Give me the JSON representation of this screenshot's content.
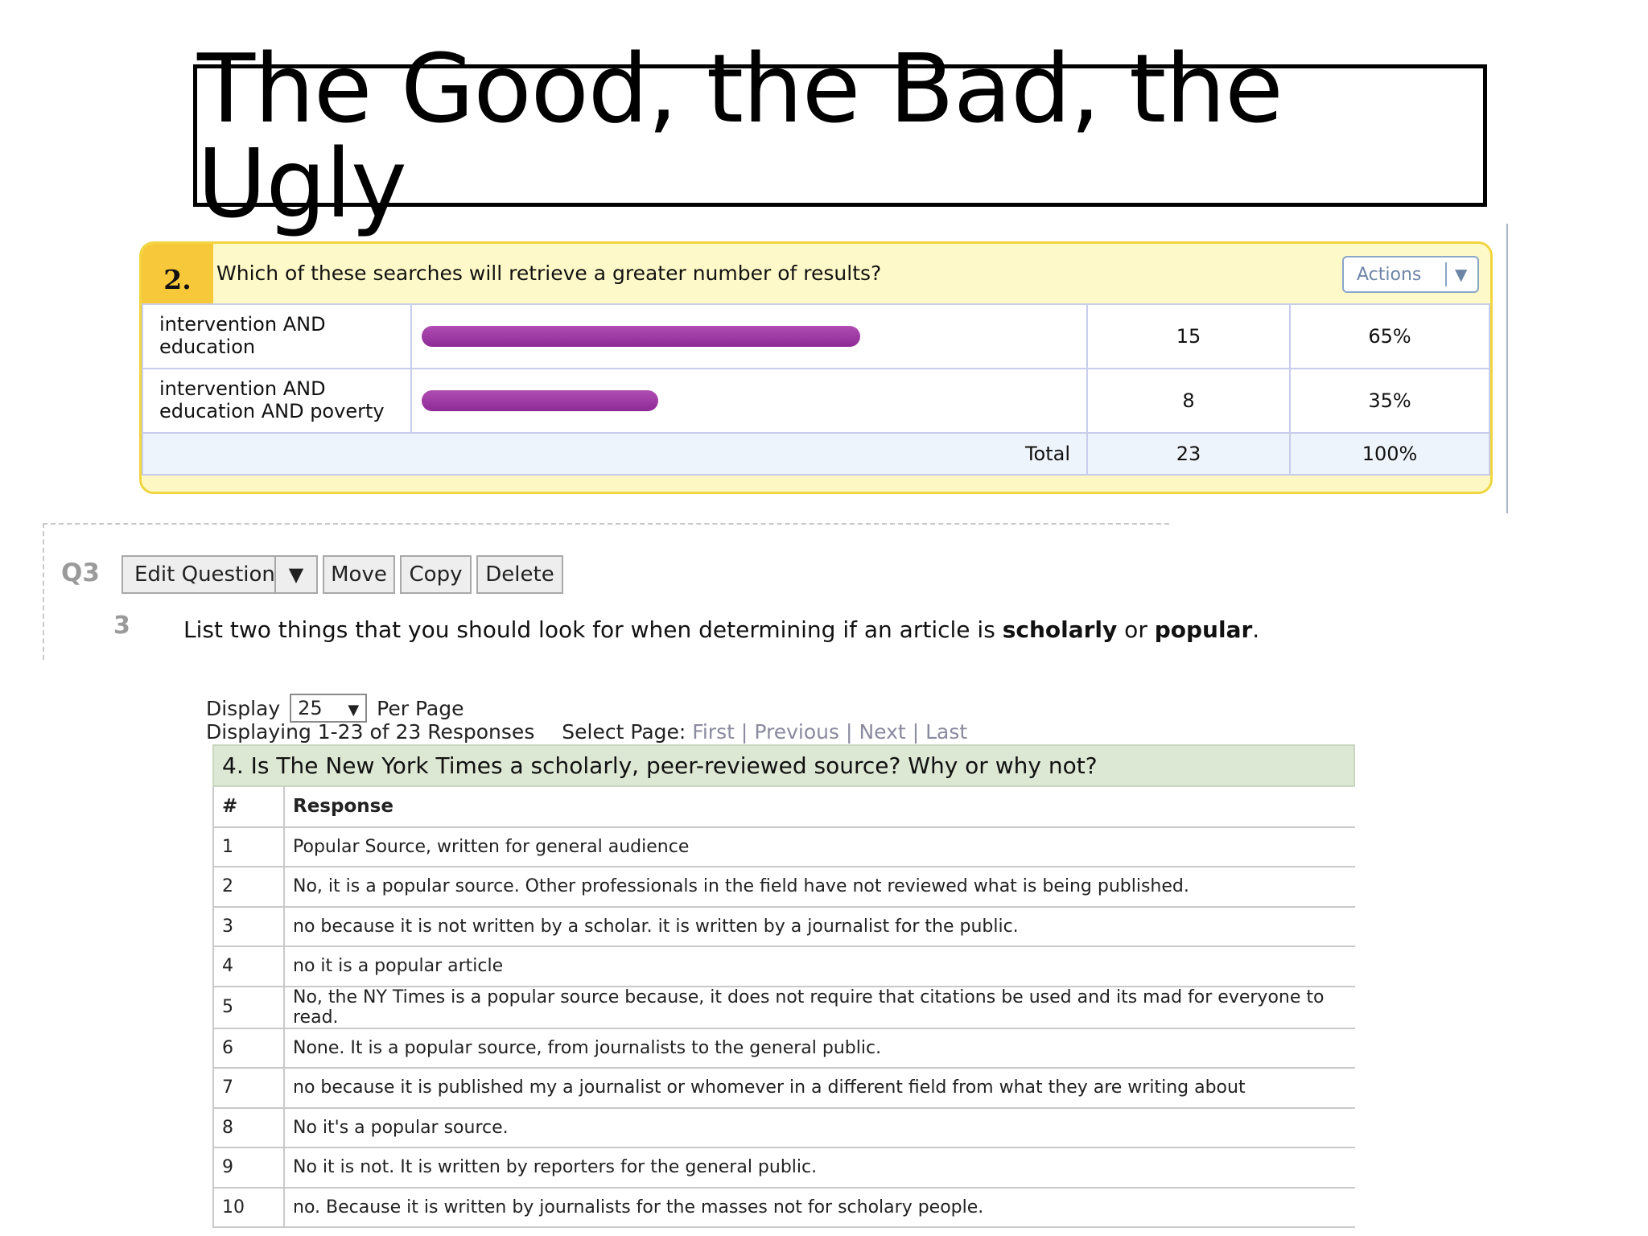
{
  "slide_title": "The Good, the Bad, the Ugly",
  "q2": {
    "number": "2.",
    "question": "Which of these searches will retrieve a greater number of results?",
    "actions_label": "Actions",
    "rows": [
      {
        "label": "intervention AND education",
        "count": "15",
        "percent": "65%",
        "fraction": 0.65
      },
      {
        "label": "intervention AND education AND poverty",
        "count": "8",
        "percent": "35%",
        "fraction": 0.35
      }
    ],
    "total": {
      "label": "Total",
      "count": "23",
      "percent": "100%"
    },
    "bar_color": "#8e2a96"
  },
  "q3": {
    "label": "Q3",
    "buttons": {
      "edit": "Edit Question",
      "move": "Move",
      "copy": "Copy",
      "delete": "Delete"
    },
    "number": "3",
    "question_pre": "List two things that you should look for when determining if an article is ",
    "question_bold1": "scholarly",
    "question_mid": " or ",
    "question_bold2": "popular",
    "question_post": "."
  },
  "q4": {
    "display_label": "Display",
    "per_page_value": "25",
    "per_page_label": "Per Page",
    "displaying_text": "Displaying 1-23 of 23 Responses",
    "select_page_label": "Select Page:",
    "paging": {
      "first": "First",
      "previous": "Previous",
      "next": "Next",
      "last": "Last"
    },
    "question": "4. Is The New York Times a scholarly, peer-reviewed source? Why or why not?",
    "columns": {
      "index": "#",
      "response": "Response"
    },
    "responses": [
      {
        "n": "1",
        "text": "Popular Source, written for general audience"
      },
      {
        "n": "2",
        "text": "No, it is a popular source. Other professionals in the field have not reviewed what is being published."
      },
      {
        "n": "3",
        "text": "no because it is not written by a scholar. it is written by a journalist for the public."
      },
      {
        "n": "4",
        "text": "no it is a popular article"
      },
      {
        "n": "5",
        "text": "No, the NY Times is a popular source because, it does not require that citations be used and its mad for everyone to read."
      },
      {
        "n": "6",
        "text": "None. It is a popular source, from journalists to the general public."
      },
      {
        "n": "7",
        "text": "no because it is published my a journalist or whomever in a different field from what they are writing about"
      },
      {
        "n": "8",
        "text": "No it's a popular source."
      },
      {
        "n": "9",
        "text": "No it is not. It is written by reporters for the general public."
      },
      {
        "n": "10",
        "text": "no. Because it is written by journalists for the masses not for scholary people."
      }
    ]
  }
}
